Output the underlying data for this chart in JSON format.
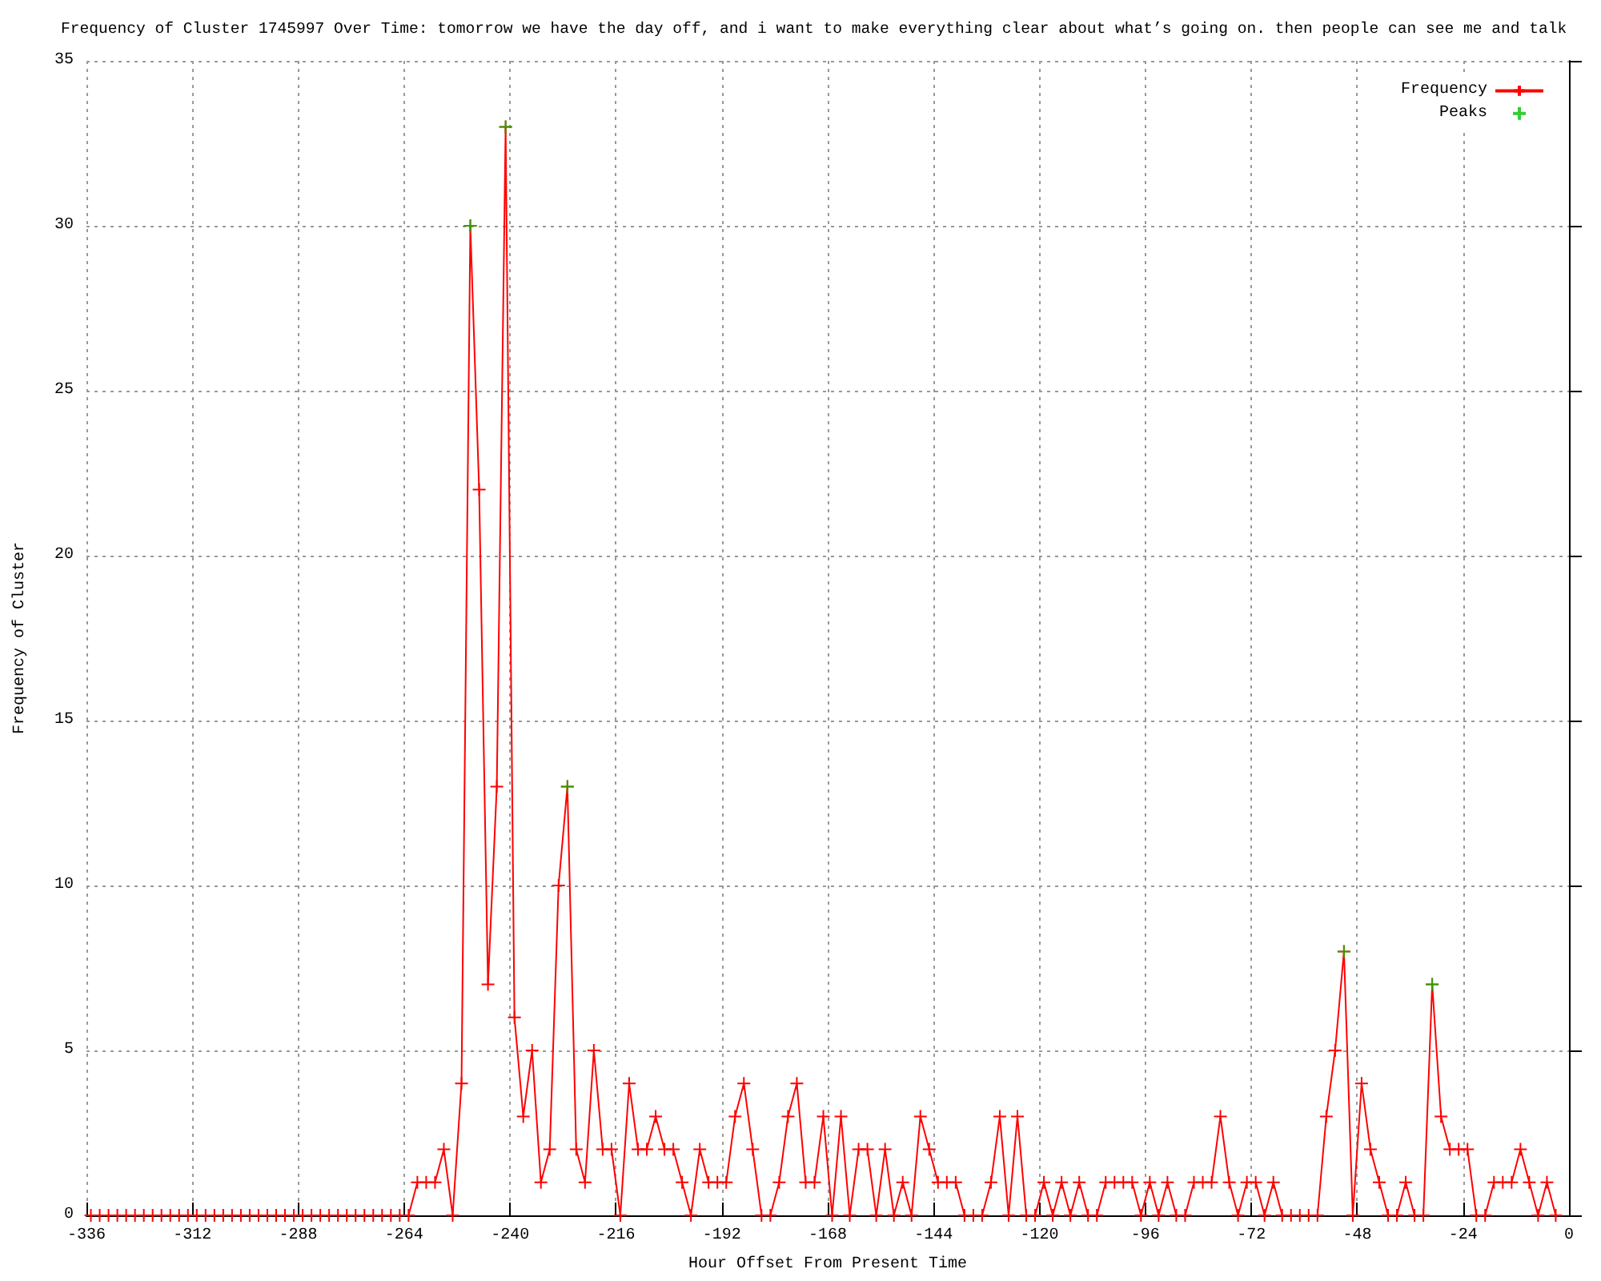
{
  "chart_data": {
    "type": "line",
    "title": "Frequency of Cluster 1745997 Over Time: tomorrow we have the day off, and i want to make everything clear about what’s going on. then people can see me and talk",
    "xlabel": "Hour Offset From Present Time",
    "ylabel": "Frequency of Cluster",
    "x": [
      -335,
      -333,
      -331,
      -329,
      -327,
      -325,
      -323,
      -321,
      -319,
      -317,
      -315,
      -313,
      -311,
      -309,
      -307,
      -305,
      -303,
      -301,
      -299,
      -297,
      -295,
      -293,
      -291,
      -289,
      -287,
      -285,
      -283,
      -281,
      -279,
      -277,
      -275,
      -273,
      -271,
      -269,
      -267,
      -265,
      -263,
      -261,
      -259,
      -257,
      -255,
      -253,
      -251,
      -249,
      -247,
      -245,
      -243,
      -241,
      -239,
      -237,
      -235,
      -233,
      -231,
      -229,
      -227,
      -225,
      -223,
      -221,
      -219,
      -217,
      -215,
      -213,
      -211,
      -209,
      -207,
      -205,
      -203,
      -201,
      -199,
      -197,
      -195,
      -193,
      -191,
      -189,
      -187,
      -185,
      -183,
      -181,
      -179,
      -177,
      -175,
      -173,
      -171,
      -169,
      -167,
      -165,
      -163,
      -161,
      -159,
      -157,
      -155,
      -153,
      -151,
      -149,
      -147,
      -145,
      -143,
      -141,
      -139,
      -137,
      -135,
      -133,
      -131,
      -129,
      -127,
      -125,
      -123,
      -121,
      -119,
      -117,
      -115,
      -113,
      -111,
      -109,
      -107,
      -105,
      -103,
      -101,
      -99,
      -97,
      -95,
      -93,
      -91,
      -89,
      -87,
      -85,
      -83,
      -81,
      -79,
      -77,
      -75,
      -73,
      -71,
      -69,
      -67,
      -65,
      -63,
      -61,
      -59,
      -57,
      -55,
      -53,
      -51,
      -49,
      -47,
      -45,
      -43,
      -41,
      -39,
      -37,
      -35,
      -33,
      -31,
      -29,
      -27,
      -25,
      -23,
      -21,
      -19,
      -17,
      -15,
      -13,
      -11,
      -9,
      -7,
      -5,
      -3
    ],
    "series": [
      {
        "name": "Frequency",
        "color": "#ff0000",
        "marker": "cross",
        "values": [
          0,
          0,
          0,
          0,
          0,
          0,
          0,
          0,
          0,
          0,
          0,
          0,
          0,
          0,
          0,
          0,
          0,
          0,
          0,
          0,
          0,
          0,
          0,
          0,
          0,
          0,
          0,
          0,
          0,
          0,
          0,
          0,
          0,
          0,
          0,
          0,
          0,
          1,
          1,
          1,
          2,
          0,
          4,
          30,
          22,
          7,
          13,
          33,
          6,
          3,
          5,
          1,
          2,
          10,
          13,
          2,
          1,
          5,
          2,
          2,
          0,
          4,
          2,
          2,
          3,
          2,
          2,
          1,
          0,
          2,
          1,
          1,
          1,
          3,
          4,
          2,
          0,
          0,
          1,
          3,
          4,
          1,
          1,
          3,
          0,
          3,
          0,
          2,
          2,
          0,
          2,
          0,
          1,
          0,
          3,
          2,
          1,
          1,
          1,
          0,
          0,
          0,
          1,
          3,
          0,
          3,
          0,
          0,
          1,
          0,
          1,
          0,
          1,
          0,
          0,
          1,
          1,
          1,
          1,
          0,
          1,
          0,
          1,
          0,
          0,
          1,
          1,
          1,
          3,
          1,
          0,
          1,
          1,
          0,
          1,
          0,
          0,
          0,
          0,
          0,
          3,
          5,
          8,
          0,
          4,
          2,
          1,
          0,
          0,
          1,
          0,
          0,
          7,
          3,
          2,
          2,
          2,
          0,
          0,
          1,
          1,
          1,
          2,
          1,
          0,
          1,
          0
        ]
      },
      {
        "name": "Peaks",
        "type": "scatter",
        "color": "#00c000",
        "marker": "cross",
        "x": [
          -249,
          -241,
          -227,
          -51,
          -31
        ],
        "values": [
          30,
          33,
          13,
          8,
          7
        ]
      }
    ],
    "xlim": [
      -336,
      0
    ],
    "xticks": [
      -336,
      -312,
      -288,
      -264,
      -240,
      -216,
      -192,
      -168,
      -144,
      -120,
      -96,
      -72,
      -48,
      -24,
      0
    ],
    "ylim": [
      0,
      35
    ],
    "yticks": [
      0,
      5,
      10,
      15,
      20,
      25,
      30,
      35
    ],
    "grid": true,
    "legend": "top right"
  }
}
